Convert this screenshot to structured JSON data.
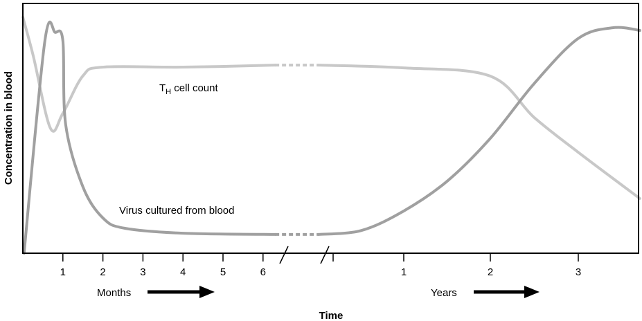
{
  "chart_data": {
    "type": "line",
    "title": "",
    "xlabel": "Time",
    "ylabel": "Concentration in blood",
    "x_segments": [
      {
        "unit_label": "Months",
        "ticks": [
          "1",
          "2",
          "3",
          "4",
          "5",
          "6"
        ]
      },
      {
        "unit_label": "Years",
        "ticks": [
          "1",
          "2",
          "3"
        ]
      }
    ],
    "axis_break": true,
    "grid": false,
    "series": [
      {
        "name": "TH cell count",
        "label_main": "T",
        "label_sub": "H",
        "label_rest": " cell count",
        "color": "#c8c8c8",
        "months": [
          [
            0,
            0.945
          ],
          [
            0.26,
            0.79
          ],
          [
            0.69,
            0.5
          ],
          [
            1.0,
            0.56
          ],
          [
            1.5,
            0.71
          ],
          [
            2.0,
            0.745
          ],
          [
            4.0,
            0.745
          ],
          [
            6.3,
            0.753
          ]
        ],
        "years": [
          [
            -0.2,
            0.753
          ],
          [
            1.0,
            0.742
          ],
          [
            2.0,
            0.709
          ],
          [
            2.5,
            0.543
          ],
          [
            3.0,
            0.404
          ],
          [
            3.7,
            0.219
          ]
        ]
      },
      {
        "name": "Virus cultured from blood",
        "color": "#a0a0a0",
        "months": [
          [
            0.03,
            0.0
          ],
          [
            0.55,
            0.85
          ],
          [
            0.81,
            0.884
          ],
          [
            1.0,
            0.85
          ],
          [
            1.07,
            0.515
          ],
          [
            1.5,
            0.266
          ],
          [
            2.0,
            0.141
          ],
          [
            2.54,
            0.1
          ],
          [
            4.0,
            0.08
          ],
          [
            6.3,
            0.075
          ]
        ],
        "years": [
          [
            -0.2,
            0.075
          ],
          [
            0.4,
            0.091
          ],
          [
            1.0,
            0.169
          ],
          [
            1.5,
            0.288
          ],
          [
            2.0,
            0.46
          ],
          [
            2.5,
            0.68
          ],
          [
            3.0,
            0.86
          ],
          [
            3.4,
            0.903
          ],
          [
            3.7,
            0.892
          ]
        ]
      }
    ]
  }
}
